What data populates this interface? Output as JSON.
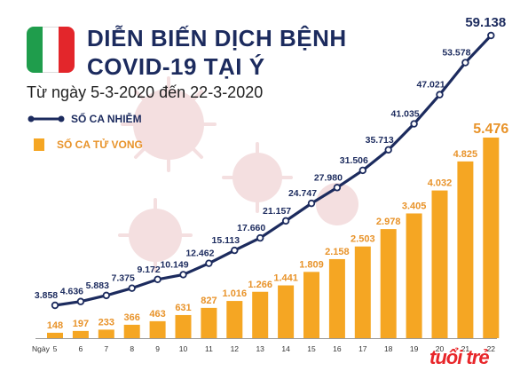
{
  "header": {
    "title_line1": "DIỄN BIẾN DỊCH BỆNH",
    "title_line2": "COVID-19 TẠI Ý",
    "subtitle": "Từ ngày 5-3-2020 đến 22-3-2020"
  },
  "flag": {
    "colors": [
      "#1f9d4c",
      "#ffffff",
      "#e3262b"
    ]
  },
  "legend": {
    "cases_label": "SỐ CA NHIỄM",
    "deaths_label": "SỐ CA TỬ VONG"
  },
  "colors": {
    "cases": "#1c2b5e",
    "deaths": "#f5a623",
    "deaths_label": "#e8932a",
    "background_virus": "#f4dfe0"
  },
  "logo": {
    "text": "tuổi trẻ"
  },
  "chart_data": {
    "type": "bar",
    "xlabel": "Ngày",
    "categories": [
      "5",
      "6",
      "7",
      "8",
      "9",
      "10",
      "11",
      "12",
      "13",
      "14",
      "15",
      "16",
      "17",
      "18",
      "19",
      "20",
      "21",
      "22"
    ],
    "series": [
      {
        "name": "SỐ CA NHIỄM",
        "type": "line",
        "values": [
          3858,
          4636,
          5883,
          7375,
          9172,
          10149,
          12462,
          15113,
          17660,
          21157,
          24747,
          27980,
          31506,
          35713,
          41035,
          47021,
          53578,
          59138
        ],
        "labels": [
          "3.858",
          "4.636",
          "5.883",
          "7.375",
          "9.172",
          "10.149",
          "12.462",
          "15.113",
          "17.660",
          "21.157",
          "24.747",
          "27.980",
          "31.506",
          "35.713",
          "41.035",
          "47.021",
          "53.578",
          "59.138"
        ]
      },
      {
        "name": "SỐ CA TỬ VONG",
        "type": "bar",
        "values": [
          148,
          197,
          233,
          366,
          463,
          631,
          827,
          1016,
          1266,
          1441,
          1809,
          2158,
          2503,
          2978,
          3405,
          4032,
          4825,
          5476
        ],
        "labels": [
          "148",
          "197",
          "233",
          "366",
          "463",
          "631",
          "827",
          "1.016",
          "1.266",
          "1.441",
          "1.809",
          "2.158",
          "2.503",
          "2.978",
          "3.405",
          "4.032",
          "4.825",
          "5.476"
        ]
      }
    ]
  }
}
